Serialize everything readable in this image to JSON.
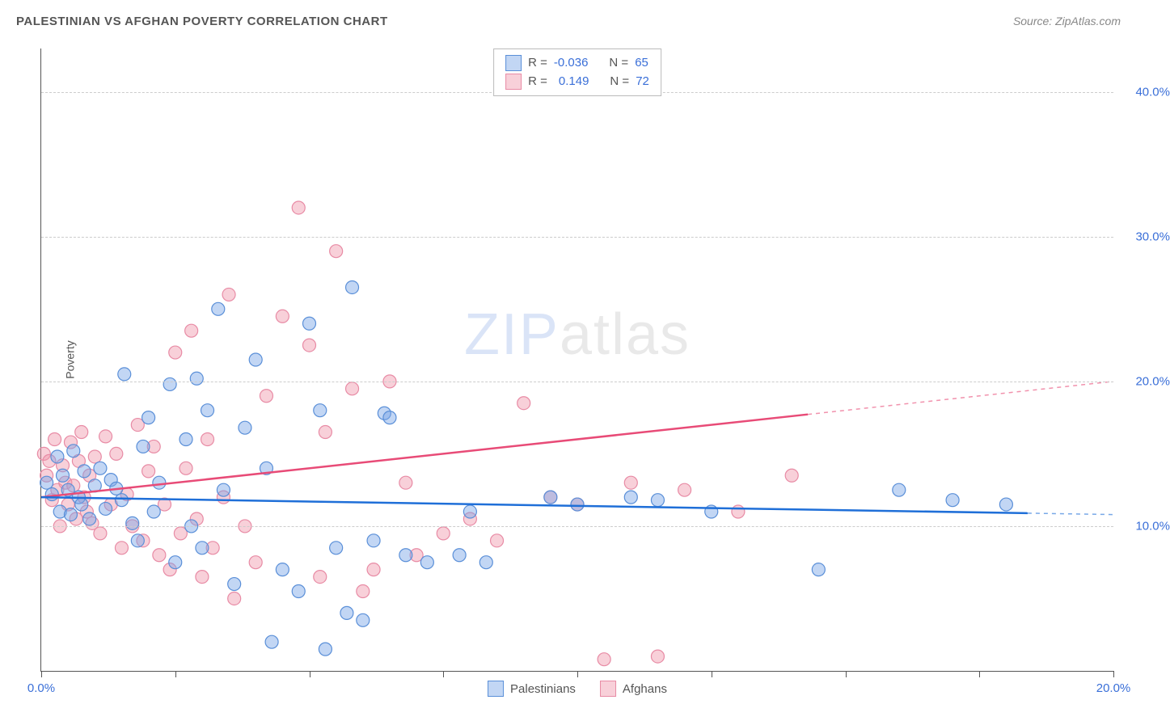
{
  "header": {
    "title": "PALESTINIAN VS AFGHAN POVERTY CORRELATION CHART",
    "source": "Source: ZipAtlas.com"
  },
  "axes": {
    "y_label": "Poverty",
    "x_min": 0.0,
    "x_max": 20.0,
    "y_min": 0.0,
    "y_max": 43.0,
    "y_ticks": [
      10.0,
      20.0,
      30.0,
      40.0
    ],
    "y_tick_labels": [
      "10.0%",
      "20.0%",
      "30.0%",
      "40.0%"
    ],
    "x_ticks": [
      0.0,
      2.5,
      5.0,
      7.5,
      10.0,
      12.5,
      15.0,
      17.5,
      20.0
    ],
    "x_tick_labels": {
      "0": "0.0%",
      "20": "20.0%"
    }
  },
  "colors": {
    "series_a_fill": "rgba(120,165,230,0.45)",
    "series_a_stroke": "#5a8fd8",
    "series_b_fill": "rgba(240,150,170,0.45)",
    "series_b_stroke": "#e88ba5",
    "line_a": "#1f6fd8",
    "line_b": "#e84b77",
    "grid": "#cccccc",
    "axis": "#555555",
    "tick_text": "#3a6fd8"
  },
  "stats": {
    "series_a": {
      "R": "-0.036",
      "N": "65"
    },
    "series_b": {
      "R": "0.149",
      "N": "72"
    }
  },
  "legend": {
    "series_a": "Palestinians",
    "series_b": "Afghans"
  },
  "watermark": {
    "bold": "ZIP",
    "light": "atlas"
  },
  "trend_lines": {
    "a": {
      "x1": 0.0,
      "y1": 12.0,
      "x2": 20.0,
      "y2": 10.8,
      "solid_x_end": 18.4
    },
    "b": {
      "x1": 0.0,
      "y1": 12.0,
      "x2": 20.0,
      "y2": 20.0,
      "solid_x_end": 14.3
    }
  },
  "marker_radius": 8,
  "series_a_points": [
    [
      0.1,
      13.0
    ],
    [
      0.2,
      12.2
    ],
    [
      0.3,
      14.8
    ],
    [
      0.35,
      11.0
    ],
    [
      0.4,
      13.5
    ],
    [
      0.5,
      12.5
    ],
    [
      0.55,
      10.8
    ],
    [
      0.6,
      15.2
    ],
    [
      0.7,
      12.0
    ],
    [
      0.75,
      11.5
    ],
    [
      0.8,
      13.8
    ],
    [
      0.9,
      10.5
    ],
    [
      1.0,
      12.8
    ],
    [
      1.1,
      14.0
    ],
    [
      1.2,
      11.2
    ],
    [
      1.3,
      13.2
    ],
    [
      1.4,
      12.6
    ],
    [
      1.5,
      11.8
    ],
    [
      1.55,
      20.5
    ],
    [
      1.7,
      10.2
    ],
    [
      1.8,
      9.0
    ],
    [
      1.9,
      15.5
    ],
    [
      2.0,
      17.5
    ],
    [
      2.1,
      11.0
    ],
    [
      2.2,
      13.0
    ],
    [
      2.4,
      19.8
    ],
    [
      2.5,
      7.5
    ],
    [
      2.7,
      16.0
    ],
    [
      2.8,
      10.0
    ],
    [
      2.9,
      20.2
    ],
    [
      3.0,
      8.5
    ],
    [
      3.1,
      18.0
    ],
    [
      3.3,
      25.0
    ],
    [
      3.4,
      12.5
    ],
    [
      3.6,
      6.0
    ],
    [
      3.8,
      16.8
    ],
    [
      4.0,
      21.5
    ],
    [
      4.2,
      14.0
    ],
    [
      4.3,
      2.0
    ],
    [
      4.5,
      7.0
    ],
    [
      4.8,
      5.5
    ],
    [
      5.0,
      24.0
    ],
    [
      5.2,
      18.0
    ],
    [
      5.3,
      1.5
    ],
    [
      5.5,
      8.5
    ],
    [
      5.7,
      4.0
    ],
    [
      5.8,
      26.5
    ],
    [
      6.0,
      3.5
    ],
    [
      6.2,
      9.0
    ],
    [
      6.4,
      17.8
    ],
    [
      6.5,
      17.5
    ],
    [
      6.8,
      8.0
    ],
    [
      7.2,
      7.5
    ],
    [
      7.8,
      8.0
    ],
    [
      8.0,
      11.0
    ],
    [
      8.3,
      7.5
    ],
    [
      9.5,
      12.0
    ],
    [
      10.0,
      11.5
    ],
    [
      11.0,
      12.0
    ],
    [
      11.5,
      11.8
    ],
    [
      12.5,
      11.0
    ],
    [
      14.5,
      7.0
    ],
    [
      16.0,
      12.5
    ],
    [
      17.0,
      11.8
    ],
    [
      18.0,
      11.5
    ]
  ],
  "series_b_points": [
    [
      0.05,
      15.0
    ],
    [
      0.1,
      13.5
    ],
    [
      0.15,
      14.5
    ],
    [
      0.2,
      11.8
    ],
    [
      0.25,
      16.0
    ],
    [
      0.3,
      12.5
    ],
    [
      0.35,
      10.0
    ],
    [
      0.4,
      14.2
    ],
    [
      0.45,
      13.0
    ],
    [
      0.5,
      11.5
    ],
    [
      0.55,
      15.8
    ],
    [
      0.6,
      12.8
    ],
    [
      0.65,
      10.5
    ],
    [
      0.7,
      14.5
    ],
    [
      0.75,
      16.5
    ],
    [
      0.8,
      12.0
    ],
    [
      0.85,
      11.0
    ],
    [
      0.9,
      13.5
    ],
    [
      0.95,
      10.2
    ],
    [
      1.0,
      14.8
    ],
    [
      1.1,
      9.5
    ],
    [
      1.2,
      16.2
    ],
    [
      1.3,
      11.5
    ],
    [
      1.4,
      15.0
    ],
    [
      1.5,
      8.5
    ],
    [
      1.6,
      12.2
    ],
    [
      1.7,
      10.0
    ],
    [
      1.8,
      17.0
    ],
    [
      1.9,
      9.0
    ],
    [
      2.0,
      13.8
    ],
    [
      2.1,
      15.5
    ],
    [
      2.2,
      8.0
    ],
    [
      2.3,
      11.5
    ],
    [
      2.4,
      7.0
    ],
    [
      2.5,
      22.0
    ],
    [
      2.6,
      9.5
    ],
    [
      2.7,
      14.0
    ],
    [
      2.8,
      23.5
    ],
    [
      2.9,
      10.5
    ],
    [
      3.0,
      6.5
    ],
    [
      3.1,
      16.0
    ],
    [
      3.2,
      8.5
    ],
    [
      3.4,
      12.0
    ],
    [
      3.5,
      26.0
    ],
    [
      3.6,
      5.0
    ],
    [
      3.8,
      10.0
    ],
    [
      4.0,
      7.5
    ],
    [
      4.2,
      19.0
    ],
    [
      4.5,
      24.5
    ],
    [
      4.8,
      32.0
    ],
    [
      5.0,
      22.5
    ],
    [
      5.2,
      6.5
    ],
    [
      5.3,
      16.5
    ],
    [
      5.5,
      29.0
    ],
    [
      5.8,
      19.5
    ],
    [
      6.0,
      5.5
    ],
    [
      6.2,
      7.0
    ],
    [
      6.5,
      20.0
    ],
    [
      6.8,
      13.0
    ],
    [
      7.0,
      8.0
    ],
    [
      7.5,
      9.5
    ],
    [
      8.0,
      10.5
    ],
    [
      8.5,
      9.0
    ],
    [
      9.0,
      18.5
    ],
    [
      9.5,
      12.0
    ],
    [
      10.0,
      11.5
    ],
    [
      10.5,
      0.8
    ],
    [
      11.0,
      13.0
    ],
    [
      11.5,
      1.0
    ],
    [
      12.0,
      12.5
    ],
    [
      13.0,
      11.0
    ],
    [
      14.0,
      13.5
    ]
  ]
}
